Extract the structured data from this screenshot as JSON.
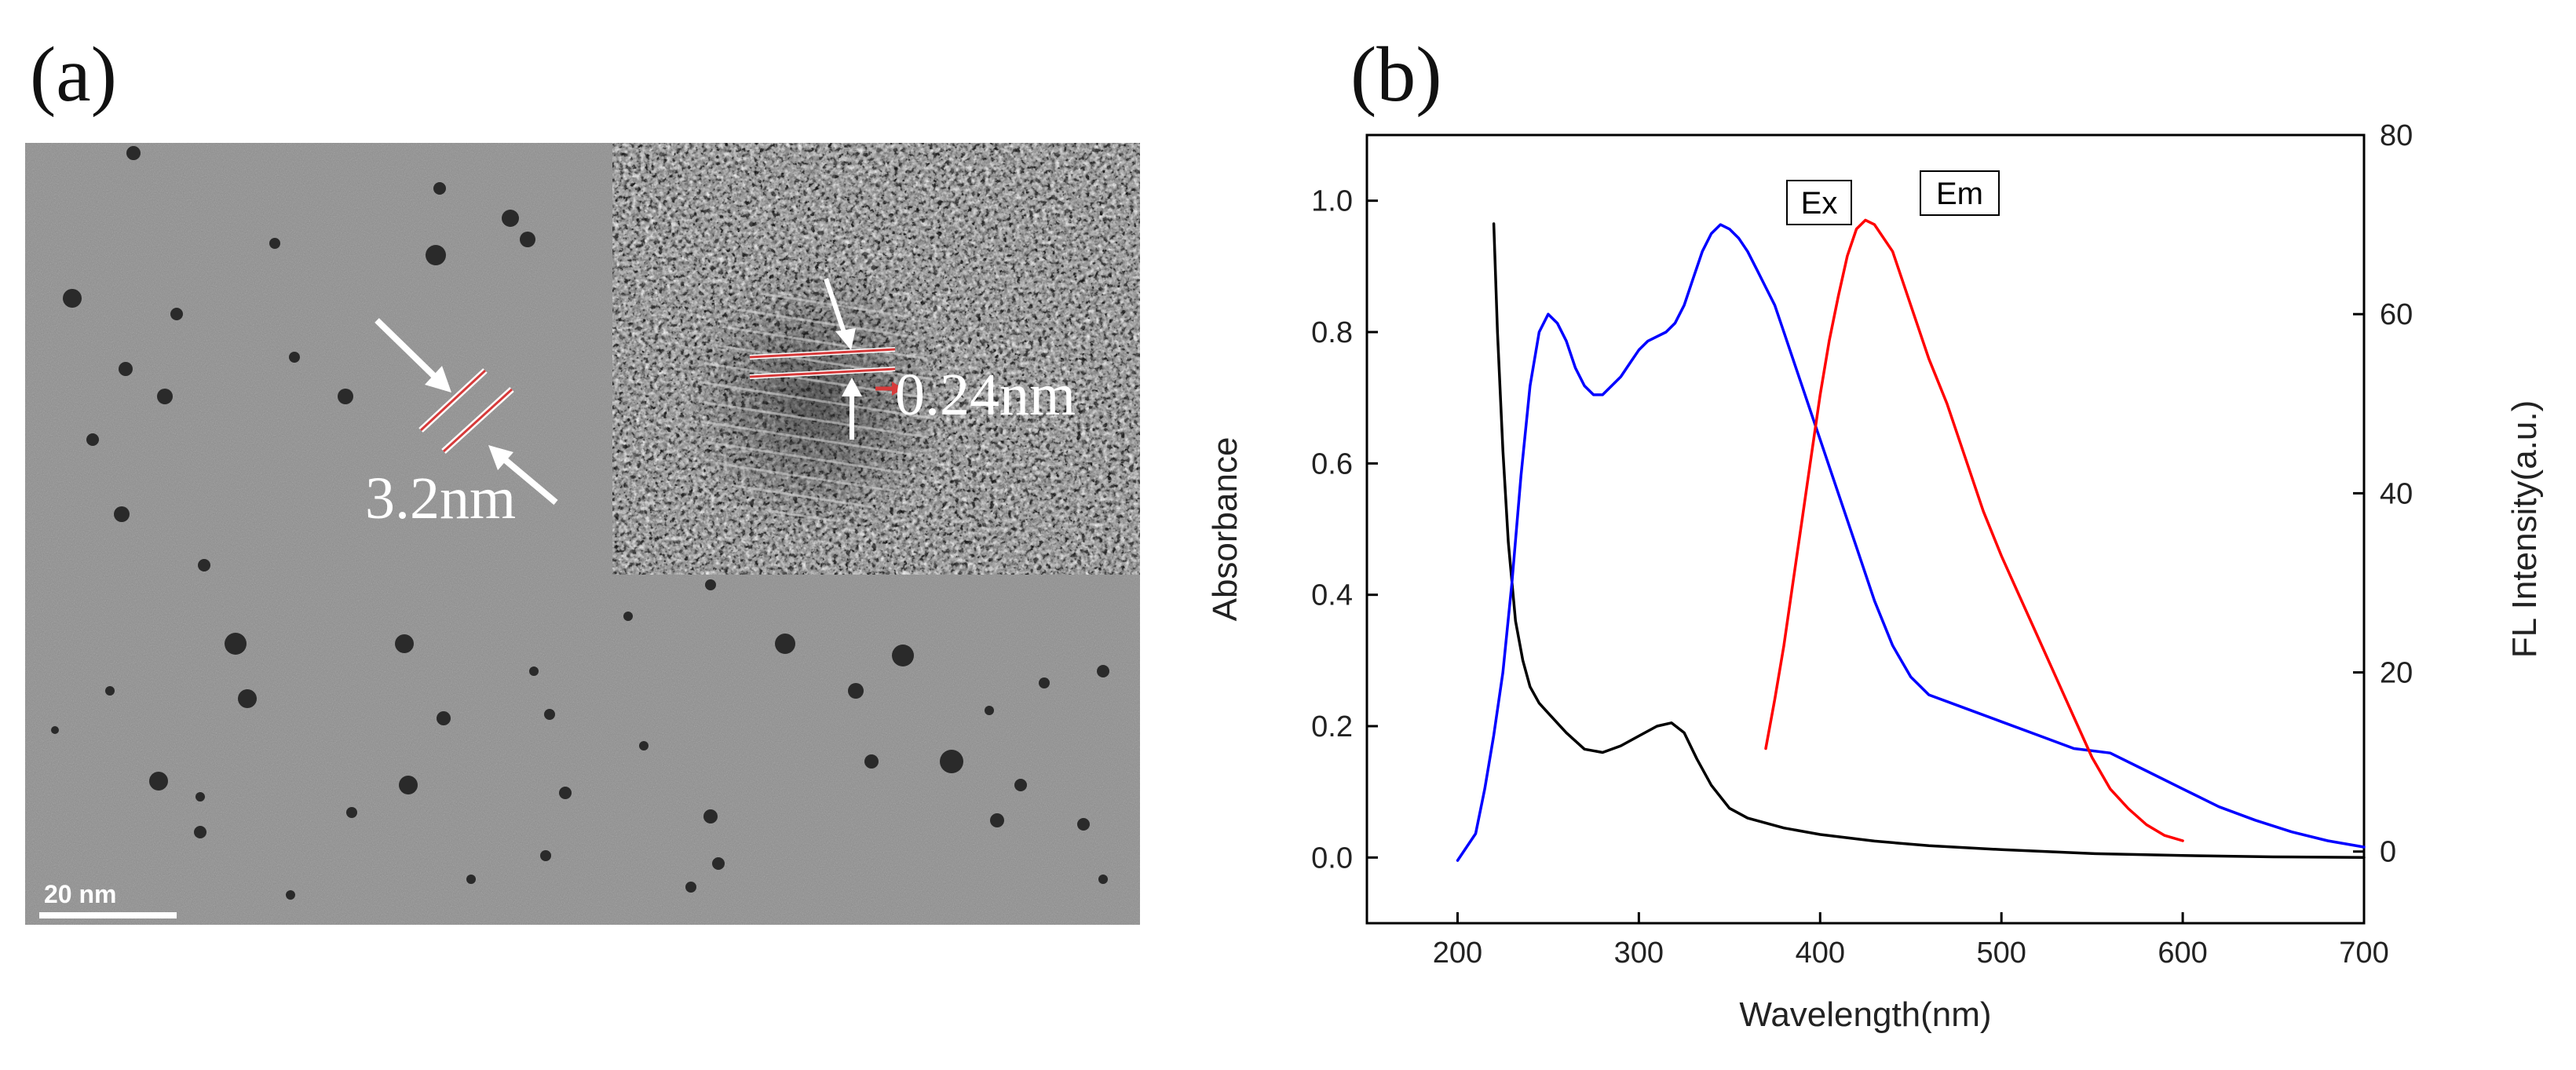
{
  "figure": {
    "panel_a_label": "(a)",
    "panel_b_label": "(b)"
  },
  "tem": {
    "scale_bar_text": "20 nm",
    "particle_size_label": "3.2nm",
    "lattice_spacing_label": "0.24nm",
    "colors": {
      "marker": "#d63a3a",
      "annotation": "#ffffff"
    }
  },
  "chart_data": {
    "type": "line",
    "title": "",
    "xlabel": "Wavelength(nm)",
    "ylabel": "Absorbance",
    "y2label": "FL Intensity(a.u.)",
    "xlim": [
      150,
      700
    ],
    "ylim": [
      -0.1,
      1.1
    ],
    "y2lim": [
      -8,
      80
    ],
    "x_ticks": [
      200,
      300,
      400,
      500,
      600,
      700
    ],
    "y_ticks": [
      0.0,
      0.2,
      0.4,
      0.6,
      0.8,
      1.0
    ],
    "y_tick_labels": [
      "0.0",
      "0.2",
      "0.4",
      "0.6",
      "0.8",
      "1.0"
    ],
    "y2_ticks": [
      0,
      20,
      40,
      60,
      80
    ],
    "series": [
      {
        "name": "Absorbance",
        "axis": "left",
        "color": "#000000",
        "x": [
          220,
          222,
          225,
          228,
          232,
          236,
          240,
          245,
          250,
          260,
          270,
          280,
          290,
          300,
          310,
          318,
          325,
          332,
          340,
          350,
          360,
          380,
          400,
          430,
          460,
          500,
          550,
          600,
          650,
          700
        ],
        "y": [
          0.965,
          0.8,
          0.62,
          0.48,
          0.36,
          0.3,
          0.26,
          0.235,
          0.22,
          0.19,
          0.165,
          0.16,
          0.17,
          0.185,
          0.2,
          0.205,
          0.19,
          0.15,
          0.11,
          0.075,
          0.06,
          0.045,
          0.035,
          0.025,
          0.018,
          0.012,
          0.006,
          0.003,
          0.001,
          0.0
        ]
      },
      {
        "name": "Ex",
        "axis": "right",
        "color": "#0000ff",
        "x": [
          200,
          205,
          210,
          215,
          220,
          225,
          230,
          235,
          240,
          245,
          250,
          255,
          260,
          265,
          270,
          275,
          280,
          285,
          290,
          295,
          300,
          305,
          310,
          315,
          320,
          325,
          330,
          335,
          340,
          345,
          350,
          355,
          360,
          365,
          370,
          375,
          380,
          385,
          390,
          395,
          400,
          410,
          420,
          430,
          440,
          450,
          460,
          480,
          500,
          520,
          540,
          560,
          580,
          600,
          620,
          640,
          660,
          680,
          700
        ],
        "y": [
          -1,
          0.5,
          2,
          7,
          13,
          20,
          30,
          42,
          52,
          58,
          60,
          59,
          57,
          54,
          52,
          51,
          51,
          52,
          53,
          54.5,
          56,
          57,
          57.5,
          58,
          59,
          61,
          64,
          67,
          69,
          70,
          69.5,
          68.5,
          67,
          65,
          63,
          61,
          58,
          55,
          52,
          49,
          46,
          40,
          34,
          28,
          23,
          19.5,
          17.5,
          16,
          14.5,
          13,
          11.5,
          11,
          9,
          7,
          5,
          3.5,
          2.2,
          1.2,
          0.5
        ]
      },
      {
        "name": "Em",
        "axis": "right",
        "color": "#ff0000",
        "x": [
          370,
          375,
          380,
          385,
          390,
          395,
          400,
          405,
          410,
          415,
          420,
          425,
          430,
          440,
          450,
          460,
          470,
          480,
          490,
          500,
          510,
          520,
          530,
          540,
          550,
          560,
          570,
          580,
          590,
          600
        ],
        "y": [
          11.5,
          17,
          23,
          30,
          37,
          44,
          51,
          57,
          62,
          66.5,
          69.5,
          70.5,
          70,
          67,
          61,
          55,
          50,
          44,
          38,
          33,
          28.5,
          24,
          19.5,
          15,
          10.5,
          7,
          4.8,
          3,
          1.8,
          1.2
        ]
      }
    ],
    "annotations": [
      {
        "text": "Ex",
        "series": "Ex"
      },
      {
        "text": "Em",
        "series": "Em"
      }
    ]
  }
}
